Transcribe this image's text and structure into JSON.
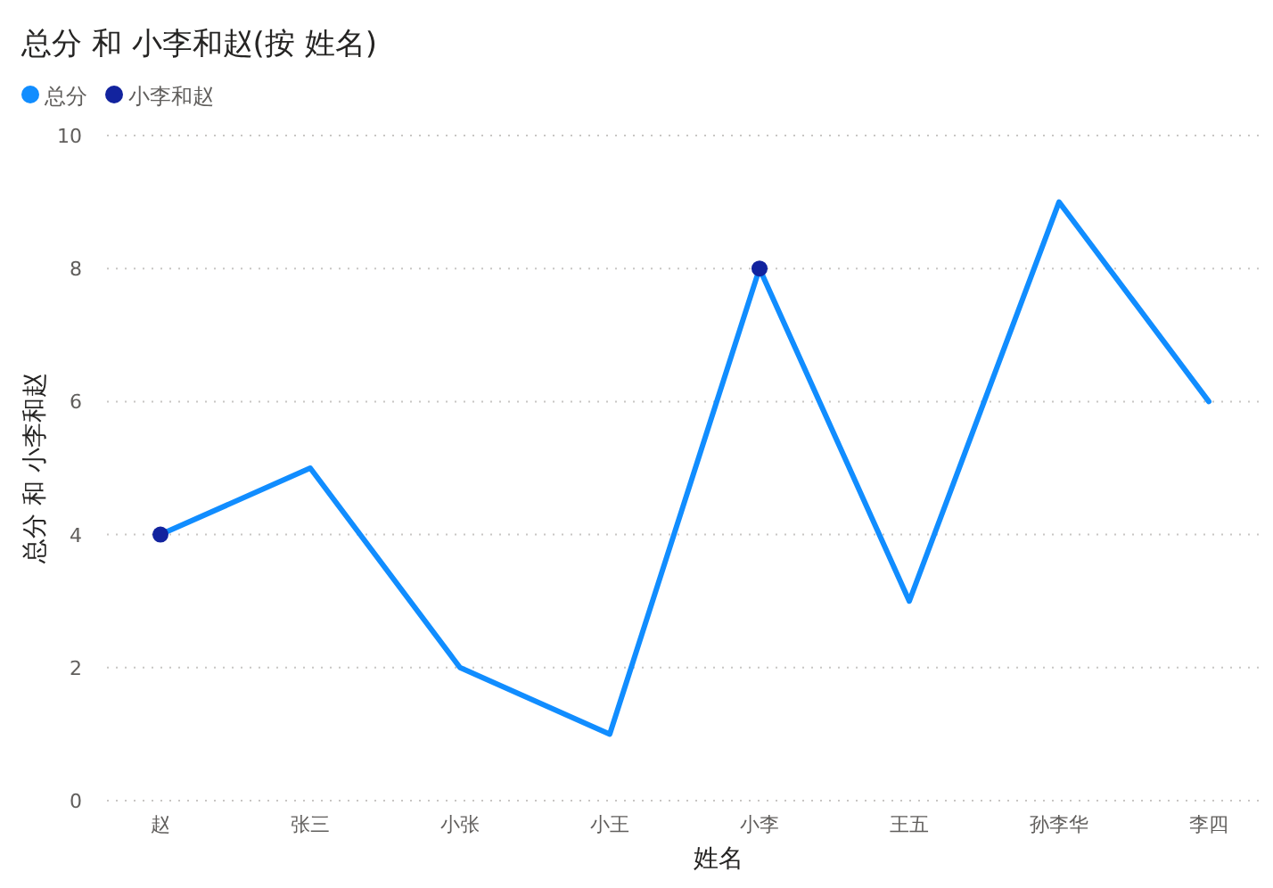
{
  "chart_data": {
    "type": "line",
    "title": "总分 和 小李和赵(按 姓名)",
    "xlabel": "姓名",
    "ylabel": "总分 和 小李和赵",
    "categories": [
      "赵",
      "张三",
      "小张",
      "小王",
      "小李",
      "王五",
      "孙李华",
      "李四"
    ],
    "series": [
      {
        "name": "总分",
        "color": "#118dff",
        "values": [
          4,
          5,
          2,
          1,
          8,
          3,
          9,
          6
        ]
      },
      {
        "name": "小李和赵",
        "type": "scatter",
        "color": "#12239e",
        "values": [
          4,
          null,
          null,
          null,
          8,
          null,
          null,
          null
        ]
      }
    ],
    "ylim": [
      0,
      10
    ],
    "yticks": [
      0,
      2,
      4,
      6,
      8,
      10
    ],
    "grid": "y",
    "legend": "top left"
  }
}
